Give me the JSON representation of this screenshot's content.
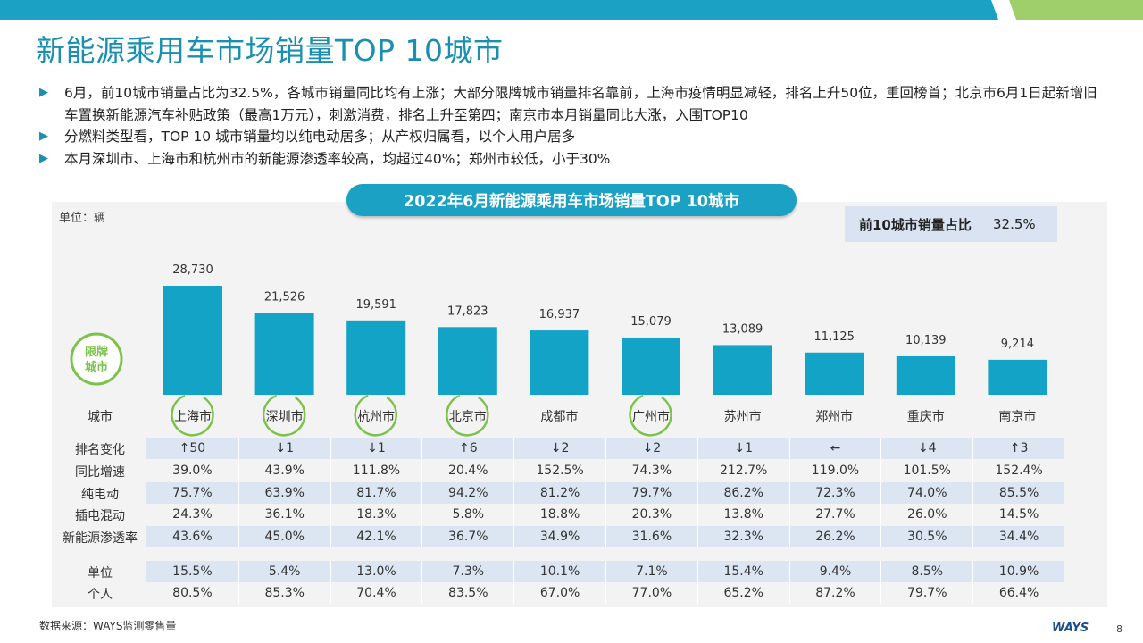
{
  "slide": {
    "title": "新能源乘用车市场销量TOP 10城市",
    "bullets": [
      "6月，前10城市销量占比为32.5%，各城市销量同比均有上涨；大部分限牌城市销量排名靠前，上海市疫情明显减轻，排名上升50位，重回榜首；北京市6月1日起新增旧车置换新能源汽车补贴政策（最高1万元），刺激消费，排名上升至第四；南京市本月销量同比大涨，入围TOP10",
      "分燃料类型看，TOP 10 城市销量均以纯电动居多；从产权归属看，以个人用户居多",
      "本月深圳市、上海市和杭州市的新能源渗透率较高，均超过40%；郑州市较低，小于30%"
    ],
    "bullet_marker": "▶",
    "source": "数据来源：WAYS监测零售量",
    "logo": "WAYS",
    "page_number": "8",
    "colors": {
      "accent": "#1aa1c4",
      "title": "#1a8fb0",
      "bar": "#12a3c6",
      "ring": "#7cc24a",
      "band_blue": "#1aa1c4",
      "band_green": "#9ecf6a"
    }
  },
  "chart_data": {
    "type": "bar",
    "title": "2022年6月新能源乘用车市场销量TOP 10城市",
    "unit_label": "单位：辆",
    "share_label": "前10城市销量占比",
    "share_value": "32.5%",
    "legend_ring_label": "限牌城市",
    "x_header": "城市",
    "categories": [
      "上海市",
      "深圳市",
      "杭州市",
      "北京市",
      "成都市",
      "广州市",
      "苏州市",
      "郑州市",
      "重庆市",
      "南京市"
    ],
    "values": [
      28730,
      21526,
      19591,
      17823,
      16937,
      15079,
      13089,
      11125,
      10139,
      9214
    ],
    "value_labels": [
      "28,730",
      "21,526",
      "19,591",
      "17,823",
      "16,937",
      "15,079",
      "13,089",
      "11,125",
      "10,139",
      "9,214"
    ],
    "restricted": [
      true,
      true,
      true,
      true,
      false,
      true,
      false,
      false,
      false,
      false
    ],
    "table": {
      "rows": [
        {
          "label": "排名变化",
          "values": [
            "↑50",
            "↓1",
            "↓1",
            "↑6",
            "↓2",
            "↓2",
            "↓1",
            "←",
            "↓4",
            "↑3"
          ],
          "alt": true
        },
        {
          "label": "同比增速",
          "values": [
            "39.0%",
            "43.9%",
            "111.8%",
            "20.4%",
            "152.5%",
            "74.3%",
            "212.7%",
            "119.0%",
            "101.5%",
            "152.4%"
          ],
          "alt": false
        },
        {
          "label": "纯电动",
          "values": [
            "75.7%",
            "63.9%",
            "81.7%",
            "94.2%",
            "81.2%",
            "79.7%",
            "86.2%",
            "72.3%",
            "74.0%",
            "85.5%"
          ],
          "alt": true
        },
        {
          "label": "插电混动",
          "values": [
            "24.3%",
            "36.1%",
            "18.3%",
            "5.8%",
            "18.8%",
            "20.3%",
            "13.8%",
            "27.7%",
            "26.0%",
            "14.5%"
          ],
          "alt": false
        },
        {
          "label": "新能源渗透率",
          "values": [
            "43.6%",
            "45.0%",
            "42.1%",
            "36.7%",
            "34.9%",
            "31.6%",
            "32.3%",
            "26.2%",
            "30.5%",
            "34.4%"
          ],
          "alt": true
        },
        {
          "label": "单位",
          "values": [
            "15.5%",
            "5.4%",
            "13.0%",
            "7.3%",
            "10.1%",
            "7.1%",
            "15.4%",
            "9.4%",
            "8.5%",
            "10.9%"
          ],
          "alt": true
        },
        {
          "label": "个人",
          "values": [
            "80.5%",
            "85.3%",
            "70.4%",
            "83.5%",
            "67.0%",
            "77.0%",
            "65.2%",
            "87.2%",
            "79.7%",
            "66.4%"
          ],
          "alt": false
        }
      ]
    }
  }
}
